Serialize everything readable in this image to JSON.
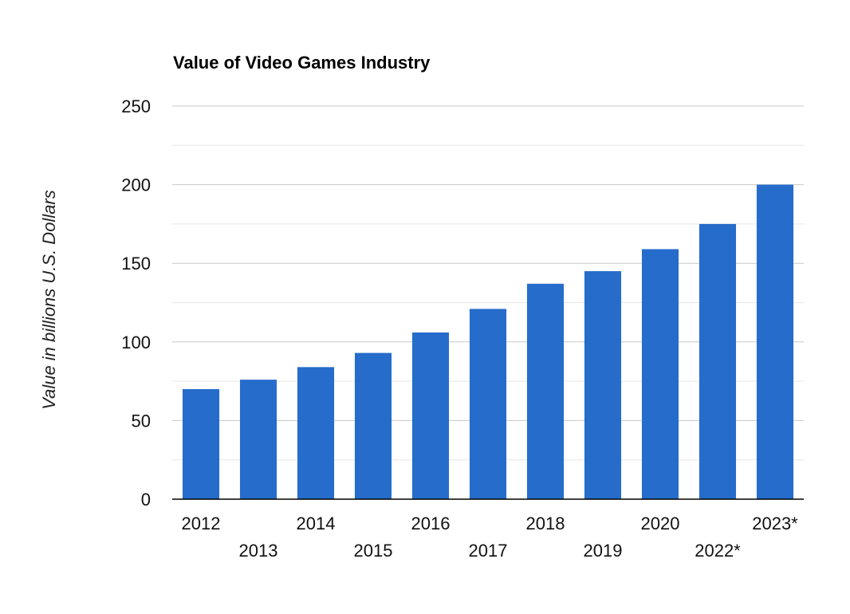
{
  "chart_data": {
    "type": "bar",
    "title": "Value of Video Games Industry",
    "xlabel": "",
    "ylabel": "Value in billions U.S. Dollars",
    "categories": [
      "2012",
      "2013",
      "2014",
      "2015",
      "2016",
      "2017",
      "2018",
      "2019",
      "2020",
      "2022*",
      "2023*"
    ],
    "values": [
      70,
      76,
      84,
      93,
      106,
      121,
      137,
      145,
      159,
      175,
      200
    ],
    "ylim": [
      0,
      250
    ],
    "yticks": [
      "0",
      "50",
      "100",
      "150",
      "200",
      "250"
    ],
    "grid": true,
    "legend": "none",
    "colors": {
      "bar": "#266ccb",
      "major_grid": "#c8c8c8",
      "minor_grid": "#e6e6e6",
      "axis": "#000000"
    }
  }
}
